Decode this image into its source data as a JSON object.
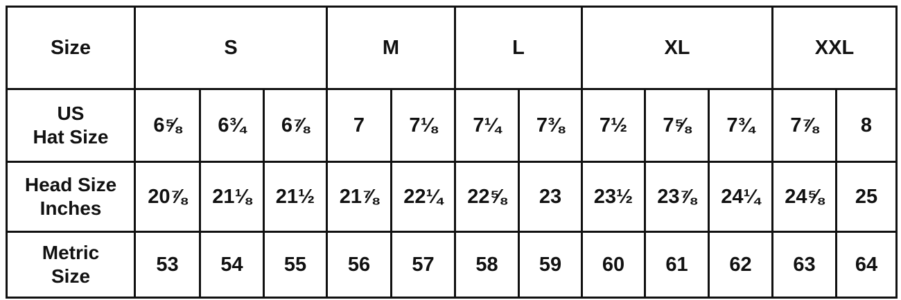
{
  "header": {
    "label": "Size",
    "groups": [
      {
        "label": "S",
        "span": 3
      },
      {
        "label": "M",
        "span": 2
      },
      {
        "label": "L",
        "span": 2
      },
      {
        "label": "XL",
        "span": 3
      },
      {
        "label": "XXL",
        "span": 2
      }
    ]
  },
  "rows": [
    {
      "label_line1": "US",
      "label_line2": "Hat Size",
      "values": [
        "6⅝",
        "6¾",
        "6⅞",
        "7",
        "7⅛",
        "7¼",
        "7⅜",
        "7½",
        "7⅝",
        "7¾",
        "7⅞",
        "8"
      ]
    },
    {
      "label_line1": "Head Size",
      "label_line2": "Inches",
      "values": [
        "20⅞",
        "21⅛",
        "21½",
        "21⅞",
        "22¼",
        "22⅝",
        "23",
        "23½",
        "23⅞",
        "24¼",
        "24⅝",
        "25"
      ]
    },
    {
      "label_line1": "Metric",
      "label_line2": "Size",
      "values": [
        "53",
        "54",
        "55",
        "56",
        "57",
        "58",
        "59",
        "60",
        "61",
        "62",
        "63",
        "64"
      ]
    }
  ]
}
